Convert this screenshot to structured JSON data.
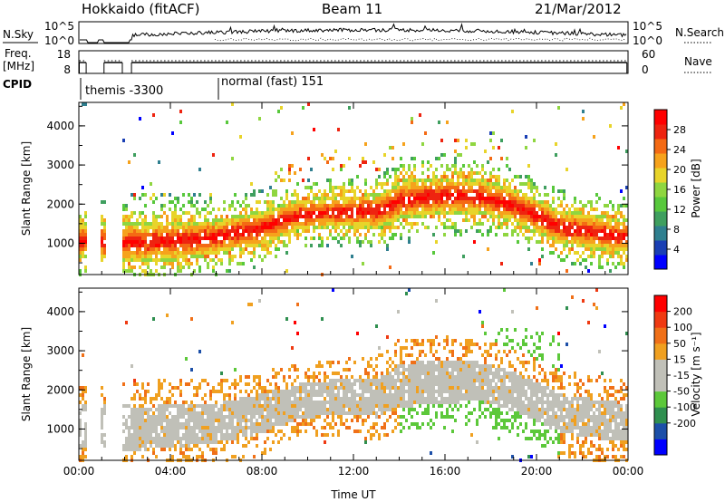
{
  "header": {
    "title": "Hokkaido (fitACF)",
    "beam": "Beam 11",
    "date": "21/Mar/2012"
  },
  "nsky_panel": {
    "left_label": "N.Sky",
    "left_ticks": [
      "10^5",
      "10^0"
    ],
    "right_ticks": [
      "10^5",
      "10^0"
    ],
    "right_label": "N.Search"
  },
  "freq_panel": {
    "left_label_line1": "Freq.",
    "left_label_line2": "[MHz]",
    "left_ticks": [
      "18",
      "8"
    ],
    "right_ticks": [
      "60",
      "0"
    ],
    "right_label": "Nave"
  },
  "cpid": {
    "label": "CPID",
    "entries": [
      {
        "text": "themis -3300",
        "start_hour": 0.05
      },
      {
        "text": "normal (fast) 151",
        "start_hour": 6.05
      }
    ]
  },
  "x_axis": {
    "label": "Time UT",
    "range_hours": [
      0,
      24
    ],
    "ticks": [
      "00:00",
      "04:00",
      "08:00",
      "12:00",
      "16:00",
      "20:00",
      "00:00"
    ],
    "tick_hours": [
      0,
      4,
      8,
      12,
      16,
      20,
      24
    ]
  },
  "chart_data": [
    {
      "type": "heatmap",
      "name": "power",
      "ylabel": "Slant Range [km]",
      "ylim": [
        200,
        4600
      ],
      "yticks": [
        "1000",
        "2000",
        "3000",
        "4000"
      ],
      "ytick_values": [
        1000,
        2000,
        3000,
        4000
      ],
      "colorbar": {
        "label": "Power [dB]",
        "ticks": [
          "28",
          "24",
          "20",
          "16",
          "12",
          "8",
          "4"
        ],
        "tick_values": [
          28,
          24,
          20,
          16,
          12,
          8,
          4
        ],
        "range": [
          0,
          32
        ],
        "colors": [
          "#0000ff",
          "#1a3fb4",
          "#2f7f8f",
          "#3f9f5f",
          "#58c83c",
          "#8fd640",
          "#e8d42a",
          "#f6a21c",
          "#f46a14",
          "#ee2410",
          "#ff0000"
        ]
      },
      "main_band": [
        {
          "t": 0.2,
          "range": 1100,
          "width": 450
        },
        {
          "t": 2.0,
          "range": 1050,
          "width": 500
        },
        {
          "t": 4.0,
          "range": 1100,
          "width": 500
        },
        {
          "t": 6.0,
          "range": 1200,
          "width": 450
        },
        {
          "t": 8.0,
          "range": 1450,
          "width": 450
        },
        {
          "t": 9.5,
          "range": 1750,
          "width": 400
        },
        {
          "t": 11.0,
          "range": 1850,
          "width": 400
        },
        {
          "t": 13.0,
          "range": 1850,
          "width": 450
        },
        {
          "t": 14.0,
          "range": 2150,
          "width": 500
        },
        {
          "t": 15.5,
          "range": 2250,
          "width": 500
        },
        {
          "t": 17.5,
          "range": 2250,
          "width": 450
        },
        {
          "t": 19.0,
          "range": 2000,
          "width": 450
        },
        {
          "t": 21.0,
          "range": 1450,
          "width": 450
        },
        {
          "t": 23.9,
          "range": 1200,
          "width": 450
        }
      ]
    },
    {
      "type": "heatmap",
      "name": "velocity",
      "ylabel": "Slant Range [km]",
      "ylim": [
        200,
        4600
      ],
      "yticks": [
        "1000",
        "2000",
        "3000",
        "4000"
      ],
      "ytick_values": [
        1000,
        2000,
        3000,
        4000
      ],
      "colorbar": {
        "label": "Velocity [m s⁻¹]",
        "ticks": [
          "200",
          "100",
          "50",
          "15",
          "-15",
          "-50",
          "-100",
          "-200"
        ],
        "tick_values": [
          200,
          100,
          50,
          15,
          -15,
          -50,
          -100,
          -200
        ],
        "colors": [
          "#0000ff",
          "#1c4fa8",
          "#2f8f4f",
          "#5cc83a",
          "#c0c0b8",
          "#c0c0b8",
          "#f0a020",
          "#f07018",
          "#ef3a12",
          "#ff0000"
        ]
      }
    }
  ],
  "colors": {
    "ground_scatter": "#c0c0b8",
    "axis": "#000000"
  }
}
